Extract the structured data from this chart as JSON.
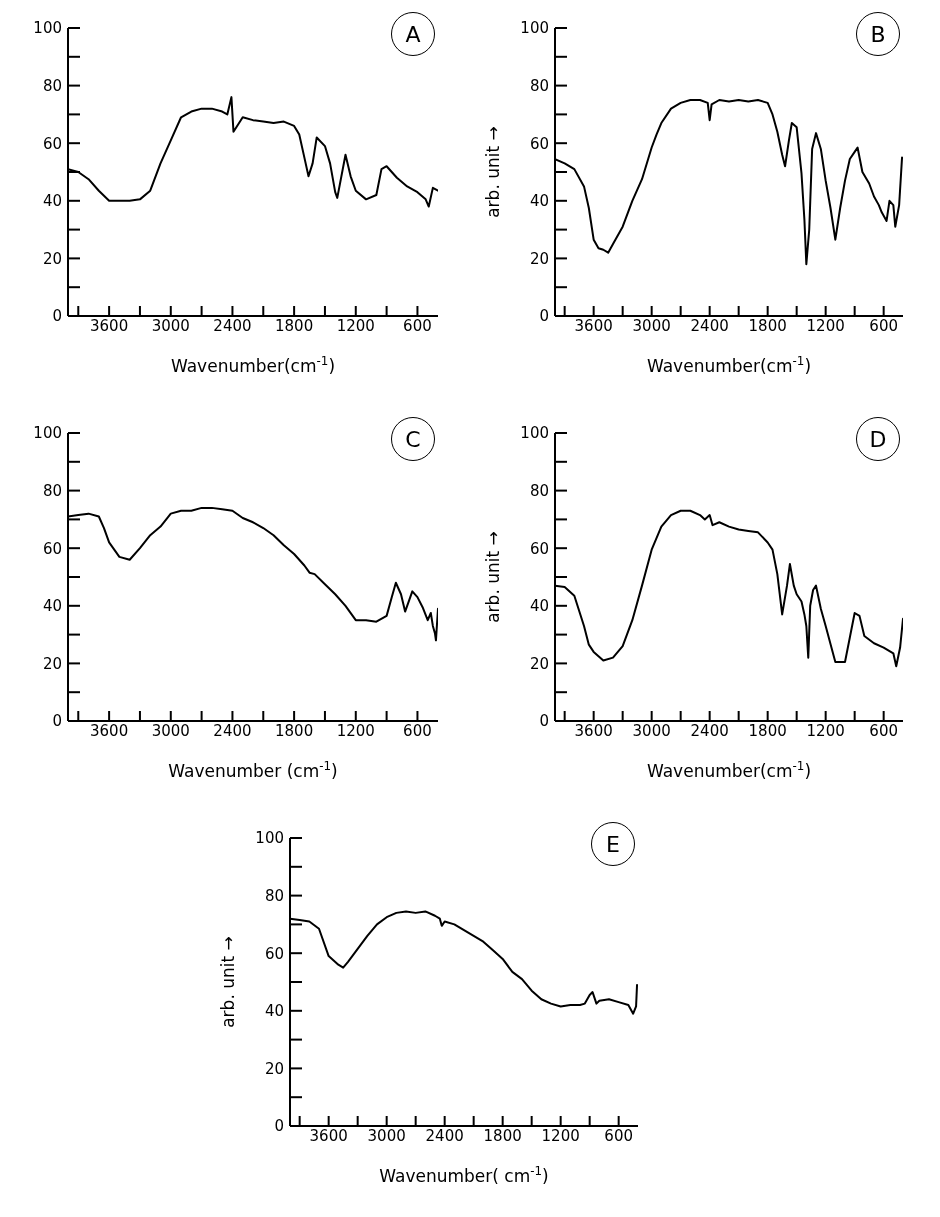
{
  "chart_data": [
    {
      "type": "line",
      "title": "A",
      "xlabel": "Wavenumber(cm$^{-1}$)",
      "xlim": [
        4000,
        400
      ],
      "xticks": [
        {
          "value": 3900,
          "label": null
        },
        3600,
        {
          "value": 3300,
          "label": null
        },
        3000,
        {
          "value": 2700,
          "label": null
        },
        2400,
        {
          "value": 2100,
          "label": null
        },
        1800,
        {
          "value": 1500,
          "label": null
        },
        1200,
        {
          "value": 900,
          "label": null
        },
        600
      ],
      "ylim": [
        0,
        100
      ],
      "yticks": [
        0,
        {
          "value": 10,
          "label": null
        },
        20,
        {
          "value": 30,
          "label": null
        },
        40,
        {
          "value": 50,
          "label": null
        },
        60,
        {
          "value": 70,
          "label": null
        },
        80,
        {
          "value": 90,
          "label": null
        },
        100
      ],
      "grid": false,
      "marker": "none",
      "line_style": "solid",
      "series": [
        {
          "color": "#000000",
          "x": [
            4000,
            3900,
            3800,
            3700,
            3600,
            3500,
            3400,
            3300,
            3200,
            3100,
            3000,
            2900,
            2800,
            2700,
            2600,
            2500,
            2450,
            2410,
            2390,
            2300,
            2200,
            2100,
            2000,
            1900,
            1800,
            1750,
            1700,
            1660,
            1620,
            1580,
            1500,
            1450,
            1400,
            1380,
            1300,
            1250,
            1200,
            1100,
            1000,
            950,
            900,
            800,
            700,
            600,
            520,
            490,
            450,
            400
          ],
          "values": [
            51,
            50,
            47.5,
            43.5,
            40,
            40,
            40,
            40.5,
            43.5,
            53,
            61,
            69,
            71,
            72,
            72,
            71,
            70,
            76,
            64,
            69,
            68,
            67.5,
            67,
            67.5,
            66,
            63,
            55,
            48.5,
            53,
            62,
            59,
            53,
            43,
            41,
            56,
            48.5,
            43.5,
            40.5,
            42,
            51,
            52,
            48,
            45,
            43,
            40.5,
            38,
            44.5,
            43.5
          ]
        }
      ]
    },
    {
      "type": "line",
      "title": "B",
      "xlabel": "Wavenumber(cm$^{-1}$)",
      "ylabel": "arb. unit →",
      "xlim": [
        4000,
        400
      ],
      "xticks": [
        {
          "value": 3900,
          "label": null
        },
        3600,
        {
          "value": 3300,
          "label": null
        },
        3000,
        {
          "value": 2700,
          "label": null
        },
        2400,
        {
          "value": 2100,
          "label": null
        },
        1800,
        {
          "value": 1500,
          "label": null
        },
        1200,
        {
          "value": 900,
          "label": null
        },
        600
      ],
      "ylim": [
        0,
        100
      ],
      "yticks": [
        0,
        {
          "value": 10,
          "label": null
        },
        20,
        {
          "value": 30,
          "label": null
        },
        40,
        {
          "value": 50,
          "label": null
        },
        60,
        {
          "value": 70,
          "label": null
        },
        80,
        {
          "value": 90,
          "label": null
        },
        100
      ],
      "grid": false,
      "marker": "none",
      "line_style": "solid",
      "series": [
        {
          "color": "#000000",
          "x": [
            4000,
            3900,
            3800,
            3700,
            3650,
            3600,
            3550,
            3500,
            3450,
            3400,
            3300,
            3200,
            3100,
            3000,
            2950,
            2900,
            2800,
            2700,
            2600,
            2500,
            2420,
            2400,
            2380,
            2300,
            2200,
            2100,
            2000,
            1900,
            1800,
            1750,
            1700,
            1650,
            1620,
            1580,
            1550,
            1500,
            1450,
            1420,
            1400,
            1370,
            1340,
            1300,
            1250,
            1200,
            1150,
            1100,
            1050,
            1000,
            950,
            900,
            870,
            820,
            750,
            700,
            650,
            620,
            570,
            540,
            500,
            480,
            440,
            420,
            410
          ],
          "values": [
            54.5,
            53,
            51,
            45,
            37.5,
            26.5,
            23.5,
            23,
            22,
            25,
            31,
            40,
            47.5,
            58.5,
            63,
            67,
            72,
            74,
            75,
            75,
            74,
            68,
            73.5,
            75,
            74.5,
            75,
            74.5,
            75,
            74,
            70,
            64,
            56,
            52,
            61,
            67,
            65.5,
            49.5,
            33.5,
            18,
            30,
            58,
            63.5,
            58,
            47,
            37.5,
            26.5,
            37.5,
            47,
            54.5,
            57,
            58.5,
            50,
            46,
            41.5,
            38.5,
            36,
            33,
            40,
            38.5,
            31,
            38.5,
            49.5,
            55
          ]
        }
      ]
    },
    {
      "type": "line",
      "title": "C",
      "xlabel": "Wavenumber (cm$^{-1}$)",
      "xlim": [
        4000,
        400
      ],
      "xticks": [
        {
          "value": 3900,
          "label": null
        },
        3600,
        {
          "value": 3300,
          "label": null
        },
        3000,
        {
          "value": 2700,
          "label": null
        },
        2400,
        {
          "value": 2100,
          "label": null
        },
        1800,
        {
          "value": 1500,
          "label": null
        },
        1200,
        {
          "value": 900,
          "label": null
        },
        600
      ],
      "ylim": [
        0,
        100
      ],
      "yticks": [
        0,
        {
          "value": 10,
          "label": null
        },
        20,
        {
          "value": 30,
          "label": null
        },
        40,
        {
          "value": 50,
          "label": null
        },
        60,
        {
          "value": 70,
          "label": null
        },
        80,
        {
          "value": 90,
          "label": null
        },
        100
      ],
      "grid": false,
      "marker": "none",
      "line_style": "solid",
      "series": [
        {
          "color": "#000000",
          "x": [
            4000,
            3900,
            3800,
            3700,
            3650,
            3600,
            3500,
            3400,
            3300,
            3200,
            3100,
            3000,
            2900,
            2800,
            2700,
            2600,
            2500,
            2400,
            2300,
            2200,
            2100,
            2000,
            1900,
            1800,
            1700,
            1650,
            1600,
            1500,
            1400,
            1300,
            1200,
            1100,
            1000,
            900,
            850,
            810,
            760,
            720,
            680,
            650,
            600,
            550,
            500,
            470,
            450,
            430,
            420,
            400
          ],
          "values": [
            71,
            71.5,
            72,
            71,
            67,
            62,
            57,
            56,
            60,
            64.5,
            67.5,
            72,
            73,
            73,
            74,
            74,
            73.5,
            73,
            70.5,
            69,
            67,
            64.5,
            61,
            58,
            54,
            51.5,
            51,
            47.5,
            44,
            40,
            35,
            35,
            34.5,
            36.5,
            43,
            48,
            44,
            38,
            42,
            45,
            43,
            39.5,
            35,
            37.5,
            33,
            30.5,
            28,
            39
          ]
        }
      ]
    },
    {
      "type": "line",
      "title": "D",
      "xlabel": "Wavenumber(cm$^{-1}$)",
      "ylabel": "arb. unit →",
      "xlim": [
        4000,
        400
      ],
      "xticks": [
        {
          "value": 3900,
          "label": null
        },
        3600,
        {
          "value": 3300,
          "label": null
        },
        3000,
        {
          "value": 2700,
          "label": null
        },
        2400,
        {
          "value": 2100,
          "label": null
        },
        1800,
        {
          "value": 1500,
          "label": null
        },
        1200,
        {
          "value": 900,
          "label": null
        },
        600
      ],
      "ylim": [
        0,
        100
      ],
      "yticks": [
        0,
        {
          "value": 10,
          "label": null
        },
        20,
        {
          "value": 30,
          "label": null
        },
        40,
        {
          "value": 50,
          "label": null
        },
        60,
        {
          "value": 70,
          "label": null
        },
        80,
        {
          "value": 90,
          "label": null
        },
        100
      ],
      "grid": false,
      "marker": "none",
      "line_style": "solid",
      "series": [
        {
          "color": "#000000",
          "x": [
            4000,
            3900,
            3800,
            3700,
            3650,
            3600,
            3500,
            3400,
            3300,
            3200,
            3100,
            3000,
            2900,
            2800,
            2700,
            2600,
            2500,
            2450,
            2400,
            2370,
            2300,
            2200,
            2100,
            2000,
            1900,
            1800,
            1750,
            1700,
            1650,
            1600,
            1570,
            1530,
            1500,
            1450,
            1420,
            1400,
            1380,
            1360,
            1330,
            1300,
            1250,
            1200,
            1100,
            1000,
            950,
            900,
            850,
            800,
            700,
            600,
            500,
            470,
            430,
            400
          ],
          "values": [
            47,
            46.5,
            43.5,
            33,
            26.5,
            24,
            21,
            22,
            26,
            35,
            47,
            59.5,
            67.5,
            71.5,
            73,
            73,
            71.5,
            70,
            71.5,
            68,
            69,
            67.5,
            66.5,
            66,
            65.5,
            62,
            59.5,
            51,
            37,
            47,
            54.5,
            47,
            44,
            41.5,
            37,
            33,
            22,
            40,
            45.5,
            47,
            39,
            33,
            20.5,
            20.5,
            29,
            37.5,
            36.5,
            29.5,
            27,
            25.5,
            23.5,
            19,
            25.5,
            35.5
          ]
        }
      ]
    },
    {
      "type": "line",
      "title": "E",
      "xlabel": "Wavenumber( cm$^{-1}$)",
      "ylabel": "arb. unit →",
      "xlim": [
        4000,
        400
      ],
      "xticks": [
        {
          "value": 3900,
          "label": null
        },
        3600,
        {
          "value": 3300,
          "label": null
        },
        3000,
        {
          "value": 2700,
          "label": null
        },
        2400,
        {
          "value": 2100,
          "label": null
        },
        1800,
        {
          "value": 1500,
          "label": null
        },
        1200,
        {
          "value": 900,
          "label": null
        },
        600
      ],
      "ylim": [
        0,
        100
      ],
      "yticks": [
        0,
        {
          "value": 10,
          "label": null
        },
        20,
        {
          "value": 30,
          "label": null
        },
        40,
        {
          "value": 50,
          "label": null
        },
        60,
        {
          "value": 70,
          "label": null
        },
        80,
        {
          "value": 90,
          "label": null
        },
        100
      ],
      "grid": false,
      "marker": "none",
      "line_style": "solid",
      "series": [
        {
          "color": "#000000",
          "x": [
            4000,
            3900,
            3800,
            3700,
            3600,
            3500,
            3450,
            3400,
            3300,
            3200,
            3100,
            3000,
            2900,
            2800,
            2700,
            2600,
            2500,
            2450,
            2430,
            2400,
            2300,
            2200,
            2100,
            2000,
            1900,
            1800,
            1700,
            1600,
            1500,
            1400,
            1300,
            1200,
            1100,
            1000,
            950,
            900,
            870,
            830,
            800,
            700,
            600,
            500,
            450,
            420,
            410
          ],
          "values": [
            72,
            71.5,
            71,
            68.5,
            59,
            56,
            55,
            57,
            61.5,
            66,
            70,
            72.5,
            74,
            74.5,
            74,
            74.5,
            73,
            72,
            69.5,
            71,
            70,
            68,
            66,
            64,
            61,
            58,
            53.5,
            51,
            47,
            44,
            42.5,
            41.5,
            42,
            42,
            42.5,
            45.5,
            46.5,
            42.5,
            43.5,
            44,
            43,
            42,
            39,
            41.5,
            49
          ]
        }
      ]
    }
  ]
}
